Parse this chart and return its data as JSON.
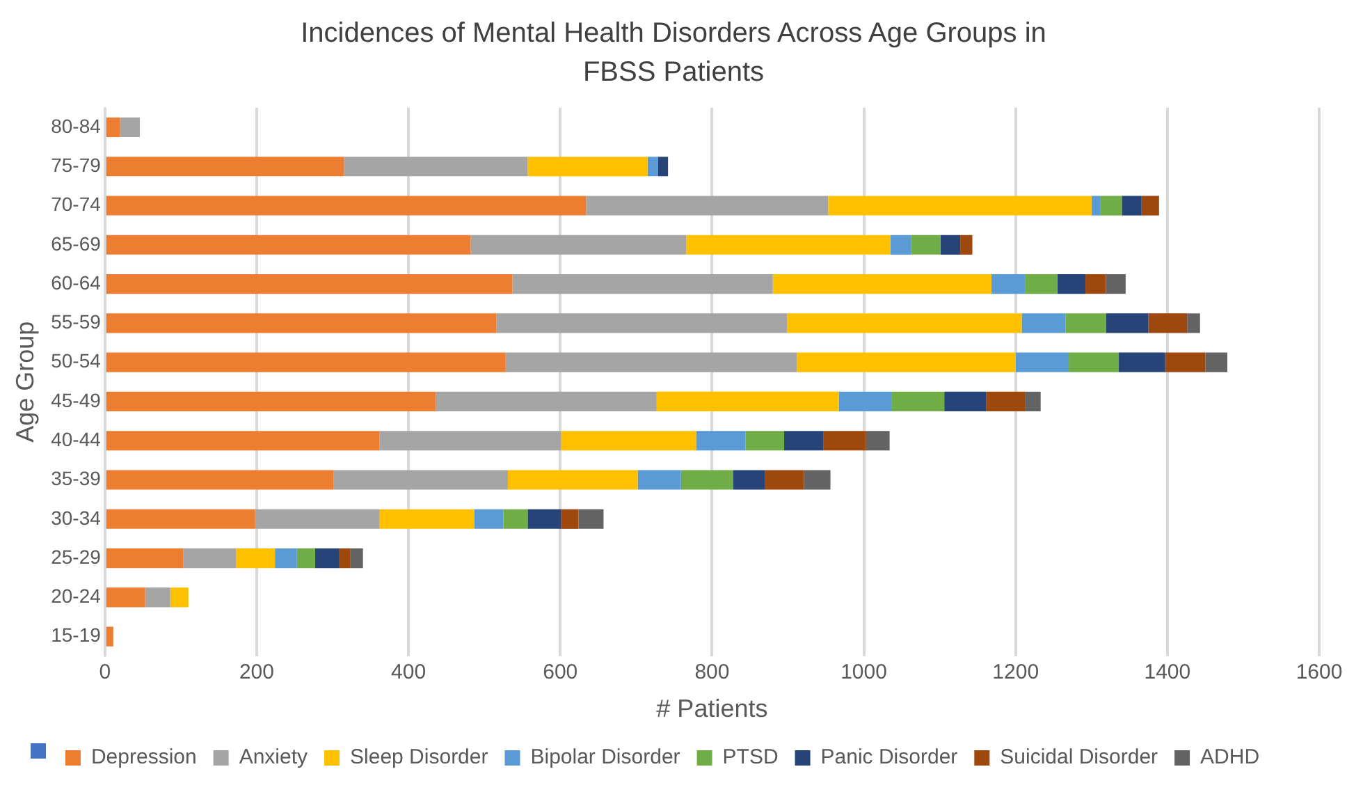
{
  "chart_data": {
    "type": "bar",
    "orientation": "horizontal",
    "stacked": true,
    "title": "Incidences of Mental Health Disorders Across Age Groups in FBSS Patients",
    "xlabel": "# Patients",
    "ylabel": "Age Group",
    "categories": [
      "80-84",
      "75-79",
      "70-74",
      "65-69",
      "60-64",
      "55-59",
      "50-54",
      "45-49",
      "40-44",
      "35-39",
      "30-34",
      "25-29",
      "20-24",
      "15-19"
    ],
    "xlim": [
      0,
      1600
    ],
    "xticks": [
      0,
      200,
      400,
      600,
      800,
      1000,
      1200,
      1400,
      1600
    ],
    "grid": "x",
    "legend": "bottom",
    "series": [
      {
        "name": "Depression",
        "color": "#ed7d31",
        "values": [
          20,
          315,
          634,
          482,
          537,
          516,
          528,
          436,
          362,
          301,
          198,
          103,
          53,
          11
        ]
      },
      {
        "name": "Anxiety",
        "color": "#a5a5a5",
        "values": [
          26,
          242,
          319,
          284,
          343,
          383,
          384,
          291,
          239,
          230,
          164,
          70,
          33,
          null
        ]
      },
      {
        "name": "Sleep Disorder",
        "color": "#ffc000",
        "values": [
          null,
          158,
          347,
          269,
          288,
          309,
          288,
          240,
          178,
          171,
          125,
          51,
          24,
          null
        ]
      },
      {
        "name": "Bipolar Disorder",
        "color": "#5b9bd5",
        "values": [
          null,
          14,
          12,
          27,
          45,
          58,
          70,
          70,
          65,
          57,
          38,
          29,
          null,
          null
        ]
      },
      {
        "name": "PTSD",
        "color": "#70ad47",
        "values": [
          null,
          null,
          28,
          39,
          42,
          53,
          66,
          69,
          51,
          69,
          32,
          24,
          null,
          null
        ]
      },
      {
        "name": "Panic Disorder",
        "color": "#264478",
        "values": [
          null,
          13,
          26,
          26,
          37,
          56,
          61,
          55,
          52,
          42,
          44,
          32,
          null,
          null
        ]
      },
      {
        "name": "Suicidal Disorder",
        "color": "#9e480e",
        "values": [
          null,
          null,
          23,
          16,
          27,
          51,
          53,
          52,
          56,
          51,
          23,
          14,
          null,
          null
        ]
      },
      {
        "name": "ADHD",
        "color": "#636363",
        "values": [
          null,
          null,
          null,
          null,
          26,
          17,
          29,
          20,
          31,
          35,
          33,
          17,
          null,
          null
        ]
      }
    ]
  }
}
